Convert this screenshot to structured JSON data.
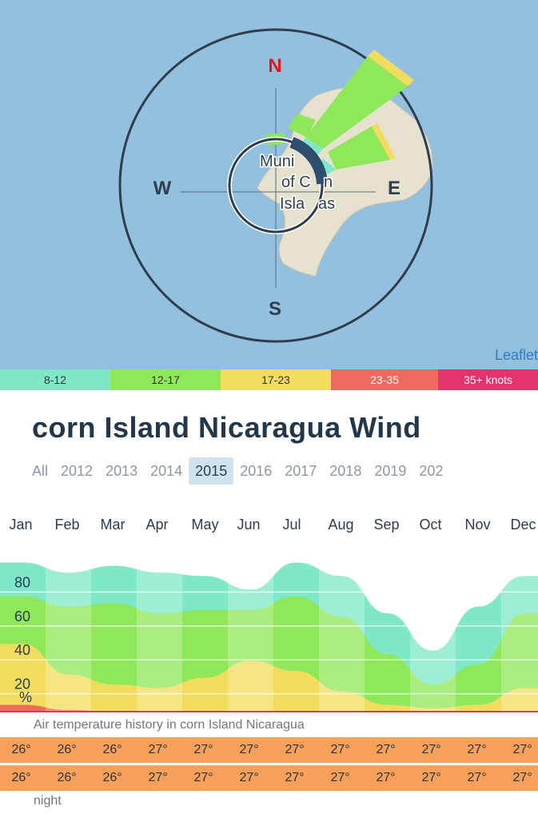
{
  "map": {
    "directions": {
      "n": "N",
      "e": "E",
      "s": "S",
      "w": "W"
    },
    "place_label": [
      "Muni",
      "of C",
      "n",
      "Isla",
      "as"
    ],
    "attribution": "Leaflet",
    "colors": {
      "water": "#94c0e0",
      "land": "#e6e2cf",
      "north": "#e3161b"
    }
  },
  "speed_legend": [
    {
      "label": "8-12",
      "color": "#7ee8c8"
    },
    {
      "label": "12-17",
      "color": "#8fe75a"
    },
    {
      "label": "17-23",
      "color": "#f2dc5d"
    },
    {
      "label": "23-35",
      "color": "#ee6a5f"
    },
    {
      "label": "35+ knots",
      "color": "#e2336b"
    }
  ],
  "title": "corn Island Nicaragua Wind",
  "years": [
    "All",
    "2012",
    "2013",
    "2014",
    "2015",
    "2016",
    "2017",
    "2018",
    "2019",
    "202"
  ],
  "selected_year": "2015",
  "chart_data": {
    "type": "area",
    "categories": [
      "Jan",
      "Feb",
      "Mar",
      "Apr",
      "May",
      "Jun",
      "Jul",
      "Aug",
      "Sep",
      "Oct",
      "Nov",
      "Dec"
    ],
    "y_ticks": [
      "80",
      "60",
      "40",
      "20",
      "%"
    ],
    "ylim": [
      0,
      100
    ],
    "series": [
      {
        "color": "#7ee8c8",
        "values": [
          88,
          82,
          86,
          82,
          80,
          72,
          88,
          80,
          58,
          36,
          62,
          80
        ]
      },
      {
        "color": "#8fe75a",
        "values": [
          68,
          62,
          64,
          58,
          60,
          60,
          68,
          56,
          34,
          16,
          28,
          58
        ]
      },
      {
        "color": "#f2dc5d",
        "values": [
          40,
          22,
          16,
          14,
          20,
          30,
          24,
          12,
          4,
          2,
          4,
          14
        ]
      },
      {
        "color": "#ee6a5f",
        "values": [
          4,
          1,
          0,
          0,
          0,
          0,
          0,
          0,
          0,
          0,
          0,
          0
        ]
      }
    ]
  },
  "temperature": {
    "caption": "Air temperature history in corn Island Nicaragua",
    "day": [
      "26°",
      "26°",
      "26°",
      "27°",
      "27°",
      "27°",
      "27°",
      "27°",
      "27°",
      "27°",
      "27°",
      "27°"
    ],
    "night": [
      "26°",
      "26°",
      "26°",
      "27°",
      "27°",
      "27°",
      "27°",
      "27°",
      "27°",
      "27°",
      "27°",
      "27°"
    ],
    "night_label": "night",
    "row_color": "#f7a05a"
  }
}
